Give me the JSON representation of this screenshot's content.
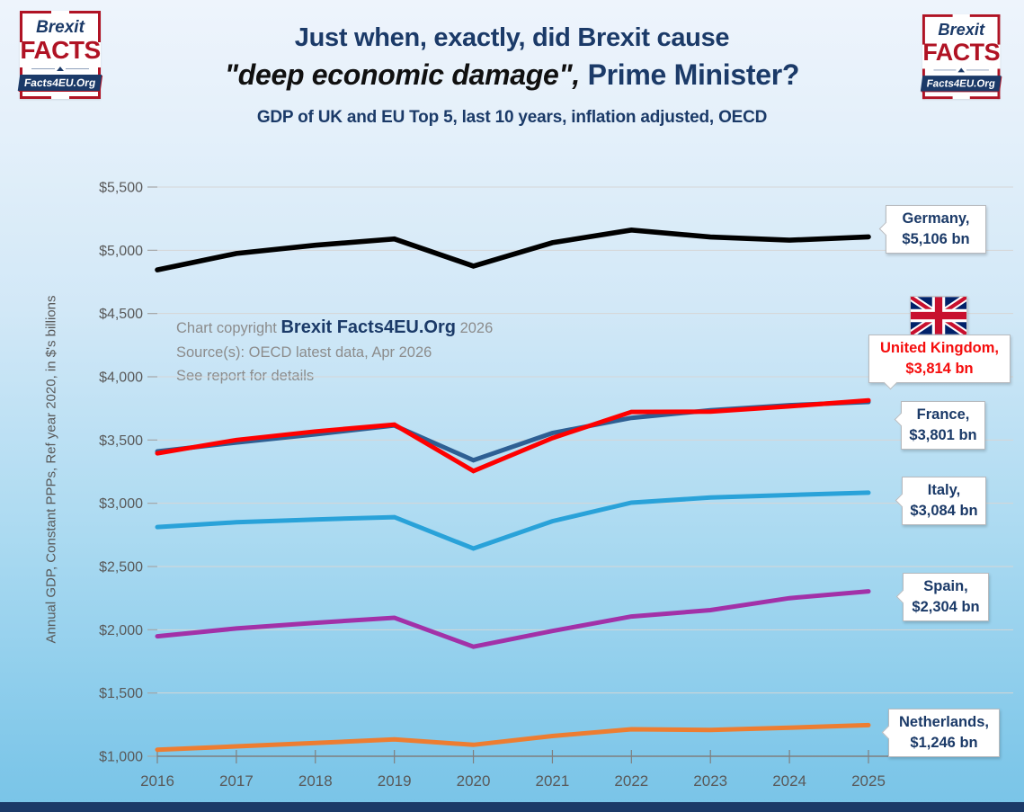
{
  "logo": {
    "brexit": "Brexit",
    "facts": "FACTS",
    "org": "Facts4EU.Org"
  },
  "header": {
    "title_line1": "Just when, exactly, did Brexit cause",
    "title_quote": "\"deep economic damage\",",
    "title_rest": " Prime Minister?",
    "subtitle": "GDP of UK and EU Top 5, last 10 years, inflation adjusted, OECD"
  },
  "copyright": {
    "prefix": "Chart copyright ",
    "brand": "Brexit Facts4EU.Org",
    "suffix": " 2026",
    "source": "Source(s): OECD latest data, Apr 2026",
    "note": "See report for details"
  },
  "callouts": {
    "germany": {
      "line1": "Germany,",
      "line2": "$5,106 bn"
    },
    "uk": {
      "line1": "United Kingdom,",
      "line2": "$3,814 bn"
    },
    "france": {
      "line1": "France,",
      "line2": "$3,801 bn"
    },
    "italy": {
      "line1": "Italy,",
      "line2": "$3,084 bn"
    },
    "spain": {
      "line1": "Spain,",
      "line2": "$2,304 bn"
    },
    "netherlands": {
      "line1": "Netherlands,",
      "line2": "$1,246 bn"
    }
  },
  "colors": {
    "navy": "#1b3a68",
    "logo_red": "#b01324",
    "uk_label_red": "#f50d0d",
    "axis_gray": "#7f7f7f",
    "tick_text_gray": "#595959",
    "grid_gray": "#d6d6d6"
  },
  "chart_data": {
    "type": "line",
    "title": "Just when, exactly, did Brexit cause \"deep economic damage\", Prime Minister?",
    "subtitle": "GDP of UK and EU Top 5, last 10 years, inflation adjusted, OECD",
    "xlabel": "",
    "ylabel": "Annual GDP, Constant PPPs, Ref year 2020, in $'s billions",
    "ylim": [
      1000,
      5500
    ],
    "grid": true,
    "legend_position": "right-callouts",
    "x": [
      2016,
      2017,
      2018,
      2019,
      2020,
      2021,
      2022,
      2023,
      2024,
      2025
    ],
    "yticks": {
      "values": [
        5500,
        5000,
        4500,
        4000,
        3500,
        3000,
        2500,
        2000,
        1500,
        1000
      ],
      "labels": [
        "$5,500",
        "$5,000",
        "$4,500",
        "$4,000",
        "$3,500",
        "$3,000",
        "$2,500",
        "$2,000",
        "$1,500",
        "$1,000"
      ]
    },
    "series": [
      {
        "name": "Germany",
        "color": "#000000",
        "values": [
          4845,
          4975,
          5040,
          5090,
          4875,
          5060,
          5160,
          5105,
          5080,
          5106
        ]
      },
      {
        "name": "France",
        "color": "#2e5f93",
        "values": [
          3410,
          3480,
          3545,
          3615,
          3340,
          3555,
          3675,
          3735,
          3775,
          3801
        ]
      },
      {
        "name": "United Kingdom",
        "color": "#fe0000",
        "values": [
          3395,
          3500,
          3568,
          3622,
          3255,
          3515,
          3722,
          3724,
          3766,
          3814
        ]
      },
      {
        "name": "Italy",
        "color": "#29a2d9",
        "values": [
          2812,
          2850,
          2872,
          2890,
          2642,
          2858,
          3005,
          3045,
          3065,
          3084
        ]
      },
      {
        "name": "Spain",
        "color": "#a231a8",
        "values": [
          1948,
          2010,
          2055,
          2095,
          1866,
          1990,
          2105,
          2155,
          2250,
          2304
        ]
      },
      {
        "name": "Netherlands",
        "color": "#ed7d31",
        "values": [
          1052,
          1078,
          1105,
          1133,
          1090,
          1160,
          1213,
          1208,
          1226,
          1246
        ]
      }
    ]
  }
}
